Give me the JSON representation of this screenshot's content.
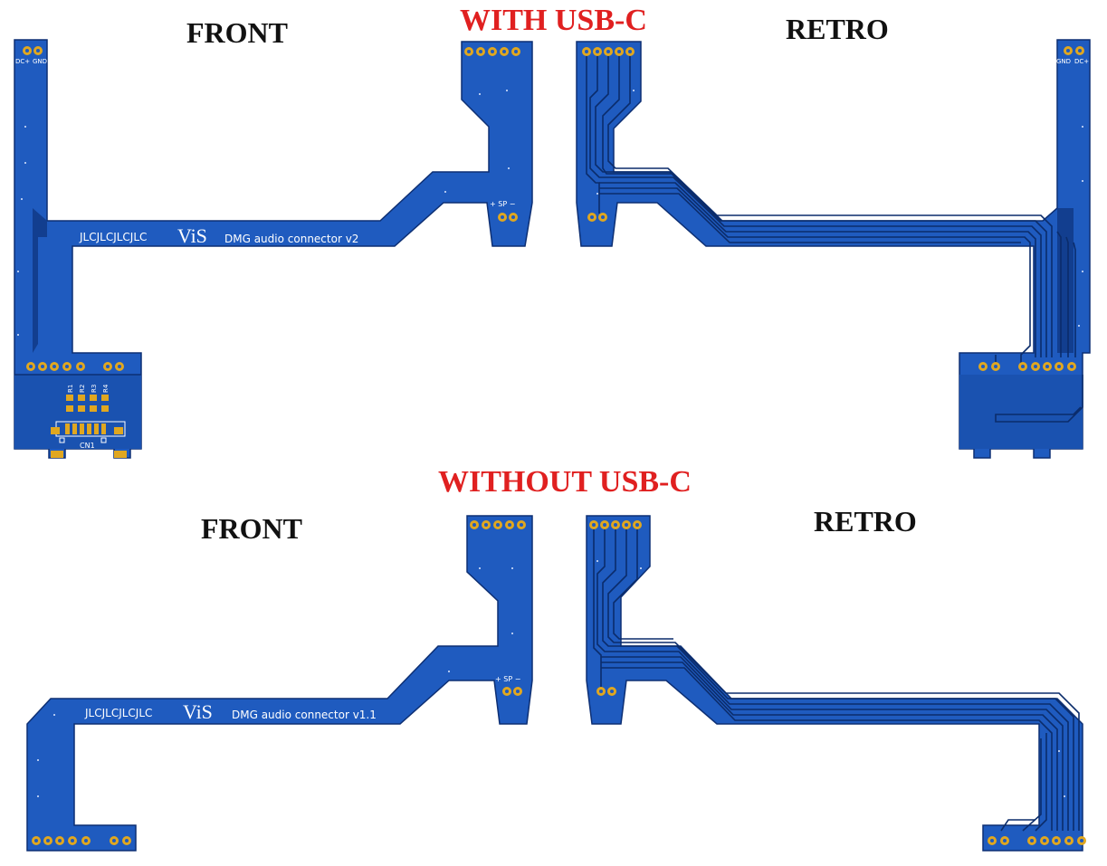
{
  "colors": {
    "board": "#1f5bbf",
    "board_dark": "#123e8f",
    "edge": "#0d2f73",
    "trace": "#0b2c6b",
    "pad": "#e0a720",
    "silk": "#ffffff",
    "heading_red": "#e02020"
  },
  "labels": {
    "with_usbc": "WITH USB-C",
    "without_usbc": "WITHOUT USB-C",
    "front_top": "FRONT",
    "retro_top": "RETRO",
    "front_bottom": "FRONT",
    "retro_bottom": "RETRO"
  },
  "boards": {
    "v2_front": {
      "brand": "JLCJLCJLCJLC",
      "logo": "ViS",
      "title": "DMG audio connector v2",
      "pin_dc": "DC+",
      "pin_gnd": "GND",
      "speaker": "+ SP −",
      "r1": "R1",
      "r2": "R2",
      "r3": "R3",
      "r4": "R4",
      "connector": "CN1"
    },
    "v2_retro": {
      "pin_gnd": "GND",
      "pin_dc": "DC+"
    },
    "v11_front": {
      "brand": "JLCJLCJLCJLC",
      "logo": "ViS",
      "title": "DMG audio connector v1.1",
      "speaker": "+ SP −"
    }
  }
}
